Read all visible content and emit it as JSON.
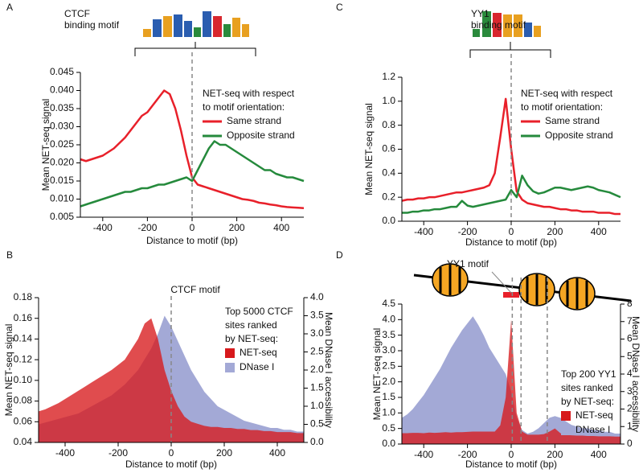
{
  "chart_data": [
    {
      "type": "line",
      "panel": "A",
      "motif_label": [
        "CTCF",
        "binding motif"
      ],
      "xlabel": "Distance to motif (bp)",
      "ylabel": "Mean NET-seq signal",
      "legend_title": [
        "NET-seq with respect",
        "to motif orientation:"
      ],
      "x": [
        -500,
        -475,
        -450,
        -425,
        -400,
        -375,
        -350,
        -325,
        -300,
        -275,
        -250,
        -225,
        -200,
        -175,
        -150,
        -125,
        -100,
        -75,
        -50,
        -25,
        0,
        25,
        50,
        75,
        100,
        125,
        150,
        175,
        200,
        225,
        250,
        275,
        300,
        325,
        350,
        375,
        400,
        425,
        450,
        475,
        500
      ],
      "series": [
        {
          "name": "Same strand",
          "color": "#e8202a",
          "values": [
            0.021,
            0.0205,
            0.021,
            0.0215,
            0.022,
            0.023,
            0.024,
            0.0255,
            0.027,
            0.029,
            0.031,
            0.033,
            0.034,
            0.036,
            0.038,
            0.04,
            0.039,
            0.035,
            0.029,
            0.022,
            0.016,
            0.014,
            0.0135,
            0.013,
            0.0125,
            0.012,
            0.0115,
            0.011,
            0.0105,
            0.01,
            0.0098,
            0.0095,
            0.009,
            0.0088,
            0.0085,
            0.0083,
            0.008,
            0.0078,
            0.0077,
            0.0076,
            0.0075
          ]
        },
        {
          "name": "Opposite strand",
          "color": "#258a3c",
          "values": [
            0.008,
            0.0085,
            0.009,
            0.0095,
            0.01,
            0.0105,
            0.011,
            0.0115,
            0.012,
            0.012,
            0.0125,
            0.013,
            0.013,
            0.0135,
            0.014,
            0.014,
            0.0145,
            0.015,
            0.0155,
            0.016,
            0.015,
            0.018,
            0.021,
            0.024,
            0.026,
            0.025,
            0.025,
            0.024,
            0.023,
            0.022,
            0.021,
            0.02,
            0.019,
            0.018,
            0.018,
            0.017,
            0.0165,
            0.016,
            0.016,
            0.0155,
            0.015
          ]
        }
      ],
      "vlines": [
        0
      ],
      "xlim": [
        -500,
        500
      ],
      "xticks": [
        -400,
        -200,
        0,
        200,
        400
      ],
      "ylim": [
        0.005,
        0.045
      ],
      "yticks": [
        0.005,
        {
          "value": 0.01,
          "label": "0.010"
        },
        0.015,
        {
          "value": 0.02,
          "label": "0.020"
        },
        0.025,
        {
          "value": 0.03,
          "label": "0.030"
        },
        0.035,
        {
          "value": 0.04,
          "label": "0.040"
        },
        0.045
      ]
    },
    {
      "type": "area",
      "panel": "B",
      "annotation": "CTCF motif",
      "xlabel": "Distance to motif (bp)",
      "ylabel": "Mean NET-seq signal",
      "y2label": "Mean DNase I accessibility",
      "legend_title": [
        "Top 5000 CTCF",
        "sites ranked",
        "by NET-seq:"
      ],
      "x": [
        -500,
        -475,
        -450,
        -425,
        -400,
        -375,
        -350,
        -325,
        -300,
        -275,
        -250,
        -225,
        -200,
        -175,
        -150,
        -125,
        -100,
        -75,
        -50,
        -25,
        0,
        25,
        50,
        75,
        100,
        125,
        150,
        175,
        200,
        225,
        250,
        275,
        300,
        325,
        350,
        375,
        400,
        425,
        450,
        475,
        500
      ],
      "series": [
        {
          "name": "NET-seq",
          "color": "#d7191c",
          "axis": "y",
          "values": [
            0.07,
            0.072,
            0.075,
            0.078,
            0.082,
            0.086,
            0.09,
            0.094,
            0.098,
            0.102,
            0.106,
            0.11,
            0.115,
            0.12,
            0.13,
            0.14,
            0.155,
            0.16,
            0.14,
            0.11,
            0.09,
            0.075,
            0.065,
            0.06,
            0.058,
            0.056,
            0.055,
            0.055,
            0.054,
            0.054,
            0.053,
            0.053,
            0.052,
            0.052,
            0.051,
            0.051,
            0.05,
            0.05,
            0.05,
            0.049,
            0.049
          ]
        },
        {
          "name": "DNase I",
          "color": "#a3a9d6",
          "axis": "y2",
          "values": [
            0.5,
            0.55,
            0.6,
            0.65,
            0.7,
            0.75,
            0.8,
            0.9,
            1.0,
            1.1,
            1.2,
            1.3,
            1.45,
            1.6,
            1.8,
            2.0,
            2.3,
            2.6,
            3.0,
            3.5,
            3.2,
            2.8,
            2.4,
            2.0,
            1.7,
            1.4,
            1.2,
            1.0,
            0.9,
            0.8,
            0.7,
            0.6,
            0.55,
            0.5,
            0.45,
            0.4,
            0.4,
            0.35,
            0.35,
            0.3,
            0.3
          ]
        }
      ],
      "vlines": [
        0
      ],
      "xlim": [
        -500,
        500
      ],
      "xticks": [
        -400,
        -200,
        0,
        200,
        400
      ],
      "ylim": [
        0.04,
        0.18
      ],
      "yticks": [
        0.04,
        0.06,
        0.08,
        {
          "value": 0.1,
          "label": "0.10"
        },
        0.12,
        0.14,
        0.16,
        0.18
      ],
      "y2lim": [
        0,
        4
      ],
      "y2ticks": [
        {
          "value": 0,
          "label": "0.0"
        },
        0.5,
        {
          "value": 1,
          "label": "1.0"
        },
        1.5,
        {
          "value": 2,
          "label": "2.0"
        },
        2.5,
        {
          "value": 3,
          "label": "3.0"
        },
        3.5,
        {
          "value": 4,
          "label": "4.0"
        }
      ]
    },
    {
      "type": "line",
      "panel": "C",
      "motif_label": [
        "YY1",
        "binding motif"
      ],
      "xlabel": "Distance to motif (bp)",
      "ylabel": "Mean NET-seq signal",
      "legend_title": [
        "NET-seq with respect",
        "to motif orientation:"
      ],
      "x": [
        -500,
        -475,
        -450,
        -425,
        -400,
        -375,
        -350,
        -325,
        -300,
        -275,
        -250,
        -225,
        -200,
        -175,
        -150,
        -125,
        -100,
        -75,
        -50,
        -25,
        0,
        25,
        50,
        75,
        100,
        125,
        150,
        175,
        200,
        225,
        250,
        275,
        300,
        325,
        350,
        375,
        400,
        425,
        450,
        475,
        500
      ],
      "series": [
        {
          "name": "Same strand",
          "color": "#e8202a",
          "values": [
            0.17,
            0.18,
            0.18,
            0.19,
            0.19,
            0.2,
            0.2,
            0.21,
            0.22,
            0.23,
            0.24,
            0.24,
            0.25,
            0.26,
            0.27,
            0.28,
            0.3,
            0.4,
            0.7,
            1.02,
            0.6,
            0.25,
            0.18,
            0.15,
            0.14,
            0.13,
            0.12,
            0.12,
            0.11,
            0.1,
            0.1,
            0.09,
            0.09,
            0.08,
            0.08,
            0.08,
            0.07,
            0.07,
            0.07,
            0.06,
            0.06
          ]
        },
        {
          "name": "Opposite strand",
          "color": "#258a3c",
          "values": [
            0.07,
            0.07,
            0.08,
            0.08,
            0.09,
            0.09,
            0.1,
            0.1,
            0.11,
            0.12,
            0.12,
            0.17,
            0.13,
            0.12,
            0.13,
            0.14,
            0.15,
            0.16,
            0.17,
            0.18,
            0.26,
            0.2,
            0.38,
            0.3,
            0.25,
            0.23,
            0.24,
            0.26,
            0.28,
            0.28,
            0.27,
            0.26,
            0.27,
            0.28,
            0.29,
            0.28,
            0.26,
            0.25,
            0.24,
            0.22,
            0.2
          ]
        }
      ],
      "vlines": [
        0
      ],
      "xlim": [
        -500,
        500
      ],
      "xticks": [
        -400,
        -200,
        0,
        200,
        400
      ],
      "ylim": [
        0,
        1.2
      ],
      "yticks": [
        {
          "value": 0,
          "label": "0.0"
        },
        0.2,
        0.4,
        0.6,
        0.8,
        {
          "value": 1,
          "label": "1.0"
        },
        1.2
      ]
    },
    {
      "type": "area",
      "panel": "D",
      "annotation": "YY1 motif",
      "xlabel": "Distance to motif (bp)",
      "ylabel": "Mean NET-seq signal",
      "y2label": "Mean DNase I accessibility",
      "legend_title": [
        "Top 200 YY1",
        "sites ranked",
        "by NET-seq:"
      ],
      "x": [
        -500,
        -475,
        -450,
        -425,
        -400,
        -375,
        -350,
        -325,
        -300,
        -275,
        -250,
        -225,
        -200,
        -175,
        -150,
        -125,
        -100,
        -75,
        -50,
        -25,
        0,
        25,
        50,
        75,
        100,
        125,
        150,
        175,
        200,
        225,
        250,
        275,
        300,
        325,
        350,
        375,
        400,
        425,
        450,
        475,
        500
      ],
      "series": [
        {
          "name": "NET-seq",
          "color": "#d7191c",
          "axis": "y",
          "values": [
            0.35,
            0.35,
            0.36,
            0.36,
            0.35,
            0.37,
            0.36,
            0.37,
            0.38,
            0.37,
            0.38,
            0.38,
            0.39,
            0.4,
            0.4,
            0.4,
            0.4,
            0.4,
            0.6,
            1.5,
            4.0,
            1.0,
            0.4,
            0.3,
            0.3,
            0.3,
            0.32,
            0.4,
            0.5,
            0.35,
            0.3,
            0.28,
            0.27,
            0.27,
            0.26,
            0.26,
            0.25,
            0.25,
            0.25,
            0.24,
            0.24
          ]
        },
        {
          "name": "DNase I",
          "color": "#a3a9d6",
          "axis": "y2",
          "values": [
            1.5,
            1.7,
            2.0,
            2.4,
            2.8,
            3.3,
            3.8,
            4.3,
            4.9,
            5.5,
            6.0,
            6.5,
            6.9,
            7.3,
            6.8,
            6.2,
            5.5,
            5.0,
            4.5,
            4.0,
            3.0,
            1.5,
            0.8,
            0.6,
            0.7,
            0.9,
            1.2,
            1.5,
            1.6,
            1.5,
            1.3,
            1.1,
            1.0,
            0.9,
            0.9,
            0.8,
            0.8,
            0.7,
            0.7,
            0.6,
            0.6
          ]
        }
      ],
      "vlines": [
        5,
        45,
        165
      ],
      "xlim": [
        -500,
        500
      ],
      "xticks": [
        -400,
        -200,
        0,
        200,
        400
      ],
      "ylim": [
        0,
        4.5
      ],
      "yticks": [
        {
          "value": 0,
          "label": "0.0"
        },
        0.5,
        {
          "value": 1,
          "label": "1.0"
        },
        1.5,
        {
          "value": 2,
          "label": "2.0"
        },
        2.5,
        {
          "value": 3,
          "label": "3.0"
        },
        3.5,
        {
          "value": 4,
          "label": "4.0"
        },
        4.5
      ],
      "y2lim": [
        0,
        8
      ],
      "y2ticks": [
        0,
        1,
        2,
        3,
        4,
        5,
        6,
        7,
        8
      ]
    }
  ]
}
